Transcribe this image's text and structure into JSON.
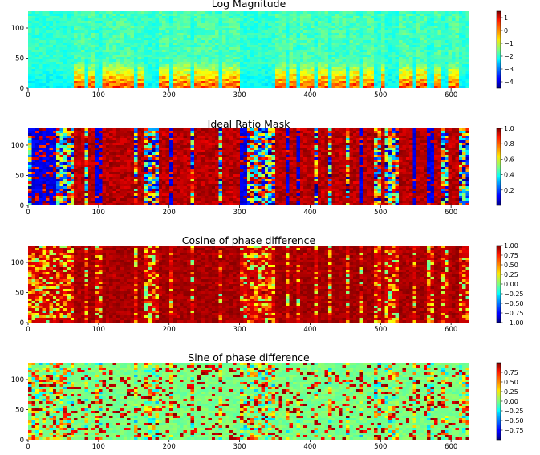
{
  "chart_data": [
    {
      "type": "heatmap",
      "title": "Log Magnitude",
      "xlim": [
        0,
        626
      ],
      "ylim": [
        0,
        128
      ],
      "xticks": [
        "0",
        "100",
        "200",
        "300",
        "400",
        "500",
        "600"
      ],
      "yticks": [
        "0",
        "50",
        "100"
      ],
      "colormap": "jet",
      "vmin": -4.5,
      "vmax": 1.5,
      "colorbar_ticks": [
        "1",
        "0",
        "−1",
        "−2",
        "−3",
        "−4"
      ],
      "colorbar_values": [
        1,
        0,
        -1,
        -2,
        -3,
        -4
      ]
    },
    {
      "type": "heatmap",
      "title": "Ideal Ratio Mask",
      "xlim": [
        0,
        626
      ],
      "ylim": [
        0,
        128
      ],
      "xticks": [
        "0",
        "100",
        "200",
        "300",
        "400",
        "500",
        "600"
      ],
      "yticks": [
        "0",
        "50",
        "100"
      ],
      "colormap": "jet",
      "vmin": 0.0,
      "vmax": 1.0,
      "colorbar_ticks": [
        "1.0",
        "0.8",
        "0.6",
        "0.4",
        "0.2"
      ],
      "colorbar_values": [
        1.0,
        0.8,
        0.6,
        0.4,
        0.2
      ]
    },
    {
      "type": "heatmap",
      "title": "Cosine of phase difference",
      "xlim": [
        0,
        626
      ],
      "ylim": [
        0,
        128
      ],
      "xticks": [
        "0",
        "100",
        "200",
        "300",
        "400",
        "500",
        "600"
      ],
      "yticks": [
        "0",
        "50",
        "100"
      ],
      "colormap": "jet",
      "vmin": -1.0,
      "vmax": 1.0,
      "colorbar_ticks": [
        "1.00",
        "0.75",
        "0.50",
        "0.25",
        "0.00",
        "−0.25",
        "−0.50",
        "−0.75",
        "−1.00"
      ],
      "colorbar_values": [
        1.0,
        0.75,
        0.5,
        0.25,
        0.0,
        -0.25,
        -0.5,
        -0.75,
        -1.0
      ]
    },
    {
      "type": "heatmap",
      "title": "Sine of phase difference",
      "xlim": [
        0,
        626
      ],
      "ylim": [
        0,
        128
      ],
      "xticks": [
        "0",
        "100",
        "200",
        "300",
        "400",
        "500",
        "600"
      ],
      "yticks": [
        "0",
        "50",
        "100"
      ],
      "colormap": "jet",
      "vmin": -1.0,
      "vmax": 1.0,
      "colorbar_ticks": [
        "0.75",
        "0.50",
        "0.25",
        "0.00",
        "−0.25",
        "−0.50",
        "−0.75"
      ],
      "colorbar_values": [
        0.75,
        0.5,
        0.25,
        0.0,
        -0.25,
        -0.5,
        -0.75
      ]
    }
  ]
}
